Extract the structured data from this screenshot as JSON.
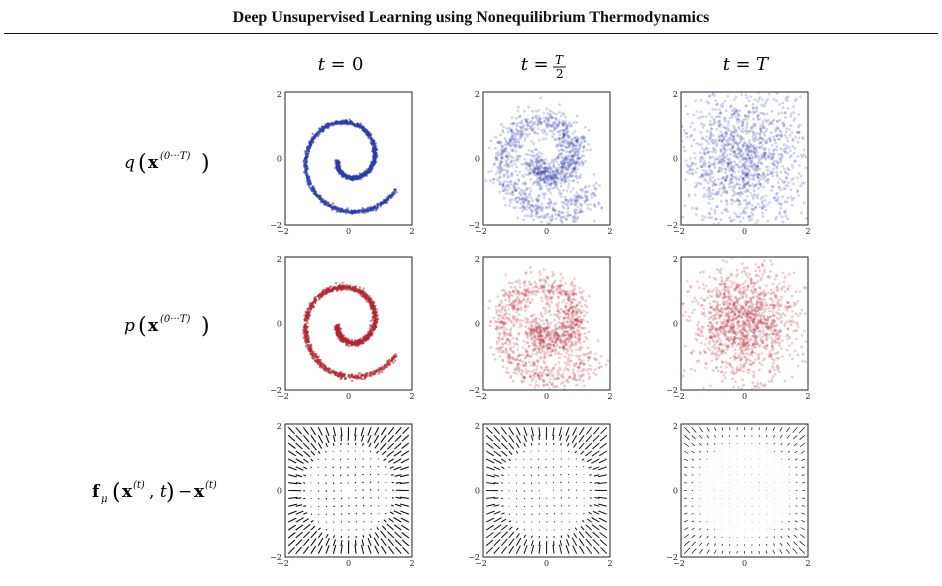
{
  "header": {
    "title": "Deep Unsupervised Learning using Nonequilibrium Thermodynamics"
  },
  "figure": {
    "col_headers": [
      {
        "lhs": "t",
        "rhs": "0"
      },
      {
        "lhs": "t",
        "rhs": "T/2"
      },
      {
        "lhs": "t",
        "rhs": "T"
      }
    ],
    "row_labels": [
      {
        "func": "q",
        "arg": "x",
        "sup": "(0···T)",
        "tail": ""
      },
      {
        "func": "p",
        "arg": "x",
        "sup": "(0···T)",
        "tail": ""
      },
      {
        "func": "f",
        "sub": "μ",
        "arg": "x",
        "sup": "(t)",
        "tail": ", t) − x",
        "tail_sup": "(t)"
      }
    ],
    "tick_labels": {
      "xmin": "−2",
      "xmid": "0",
      "xmax": "2",
      "ymin": "−2",
      "ymid": "0",
      "ymax": "2"
    },
    "colors": {
      "q": "#2e3aa8",
      "p": "#b12630",
      "arrows": "#111111"
    }
  },
  "chart_data": [
    {
      "type": "scatter",
      "panel": "q, t = 0",
      "shape": "spiral",
      "xlim": [
        -2,
        2
      ],
      "ylim": [
        -2,
        2
      ],
      "color": "#2e3aa8",
      "noise": 0.03
    },
    {
      "type": "scatter",
      "panel": "q, t = T/2",
      "shape": "spiral",
      "xlim": [
        -2,
        2
      ],
      "ylim": [
        -2,
        2
      ],
      "color": "#2e3aa8",
      "noise": 0.22
    },
    {
      "type": "scatter",
      "panel": "q, t = T",
      "shape": "gaussian",
      "xlim": [
        -2,
        2
      ],
      "ylim": [
        -2,
        2
      ],
      "color": "#2e3aa8",
      "noise": 1.0
    },
    {
      "type": "scatter",
      "panel": "p, t = 0",
      "shape": "spiral",
      "xlim": [
        -2,
        2
      ],
      "ylim": [
        -2,
        2
      ],
      "color": "#b12630",
      "noise": 0.04
    },
    {
      "type": "scatter",
      "panel": "p, t = T/2",
      "shape": "spiral",
      "xlim": [
        -2,
        2
      ],
      "ylim": [
        -2,
        2
      ],
      "color": "#b12630",
      "noise": 0.25
    },
    {
      "type": "scatter",
      "panel": "p, t = T",
      "shape": "gaussian",
      "xlim": [
        -2,
        2
      ],
      "ylim": [
        -2,
        2
      ],
      "color": "#b12630",
      "noise": 0.8
    },
    {
      "type": "quiver",
      "panel": "drift, t = 0",
      "xlim": [
        -2,
        2
      ],
      "ylim": [
        -2,
        2
      ],
      "strength": 1.0
    },
    {
      "type": "quiver",
      "panel": "drift, t = T/2",
      "xlim": [
        -2,
        2
      ],
      "ylim": [
        -2,
        2
      ],
      "strength": 0.85
    },
    {
      "type": "quiver",
      "panel": "drift, t = T",
      "xlim": [
        -2,
        2
      ],
      "ylim": [
        -2,
        2
      ],
      "strength": 0.25
    }
  ]
}
